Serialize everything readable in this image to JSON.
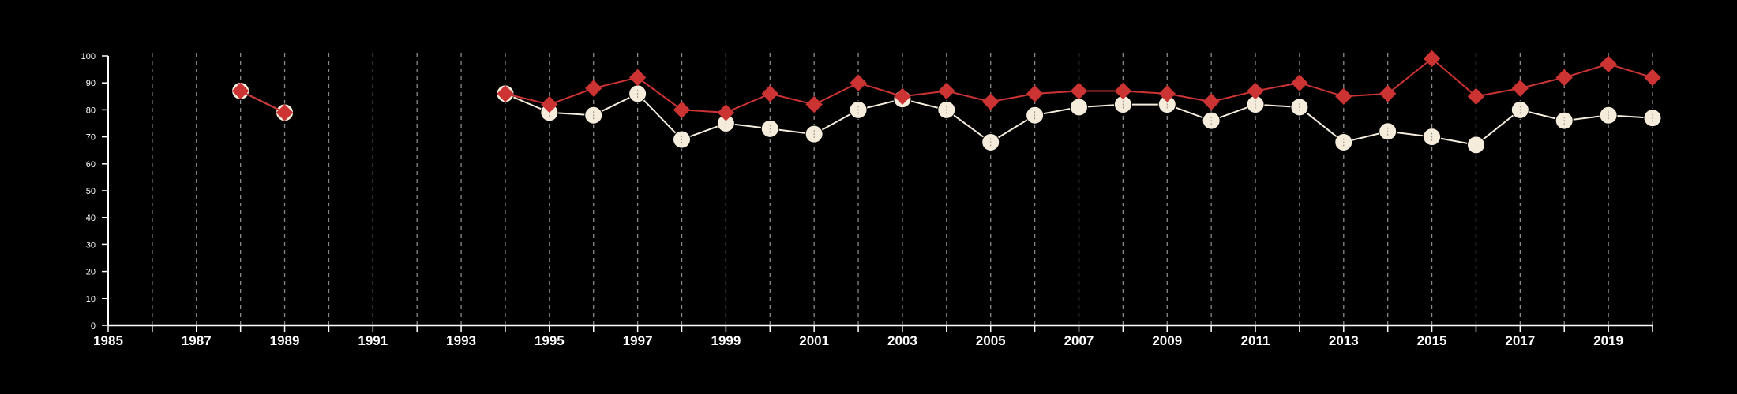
{
  "chart_data": {
    "type": "line",
    "title": "",
    "xlabel": "",
    "ylabel": "",
    "xlim": [
      1985,
      2020
    ],
    "ylim": [
      0,
      100
    ],
    "x_ticks": [
      1985,
      1987,
      1989,
      1991,
      1993,
      1995,
      1997,
      1999,
      2001,
      2003,
      2005,
      2007,
      2009,
      2011,
      2013,
      2015,
      2017,
      2019
    ],
    "y_ticks": [
      0,
      10,
      20,
      30,
      40,
      50,
      60,
      70,
      80,
      90,
      100
    ],
    "grid": "vertical dashed lines at every year",
    "legend": "none",
    "series": [
      {
        "color": "#cc3333",
        "marker": "diamond",
        "segments": [
          [
            [
              1988,
              87
            ],
            [
              1989,
              79
            ]
          ],
          [
            [
              1994,
              86
            ],
            [
              1995,
              82
            ],
            [
              1996,
              88
            ],
            [
              1997,
              92
            ],
            [
              1998,
              80
            ],
            [
              1999,
              79
            ],
            [
              2000,
              86
            ],
            [
              2001,
              82
            ],
            [
              2002,
              90
            ],
            [
              2003,
              85
            ],
            [
              2004,
              87
            ],
            [
              2005,
              83
            ],
            [
              2006,
              86
            ],
            [
              2007,
              87
            ],
            [
              2008,
              87
            ],
            [
              2009,
              86
            ],
            [
              2010,
              83
            ],
            [
              2011,
              87
            ],
            [
              2012,
              90
            ],
            [
              2013,
              85
            ],
            [
              2014,
              86
            ],
            [
              2015,
              99
            ],
            [
              2016,
              85
            ],
            [
              2017,
              88
            ],
            [
              2018,
              92
            ],
            [
              2019,
              97
            ],
            [
              2020,
              92
            ]
          ]
        ]
      },
      {
        "color": "#f5ecdc",
        "marker": "circle",
        "segments": [
          [
            [
              1988,
              87
            ],
            [
              1989,
              79
            ]
          ],
          [
            [
              1994,
              86
            ],
            [
              1995,
              79
            ],
            [
              1996,
              78
            ],
            [
              1997,
              86
            ],
            [
              1998,
              69
            ],
            [
              1999,
              75
            ],
            [
              2000,
              73
            ],
            [
              2001,
              71
            ],
            [
              2002,
              80
            ],
            [
              2003,
              84
            ],
            [
              2004,
              80
            ],
            [
              2005,
              68
            ],
            [
              2006,
              78
            ],
            [
              2007,
              81
            ],
            [
              2008,
              82
            ],
            [
              2009,
              82
            ],
            [
              2010,
              76
            ],
            [
              2011,
              82
            ],
            [
              2012,
              81
            ],
            [
              2013,
              68
            ],
            [
              2014,
              72
            ],
            [
              2015,
              70
            ],
            [
              2016,
              67
            ],
            [
              2017,
              80
            ],
            [
              2018,
              76
            ],
            [
              2019,
              78
            ],
            [
              2020,
              77
            ]
          ]
        ]
      }
    ]
  }
}
